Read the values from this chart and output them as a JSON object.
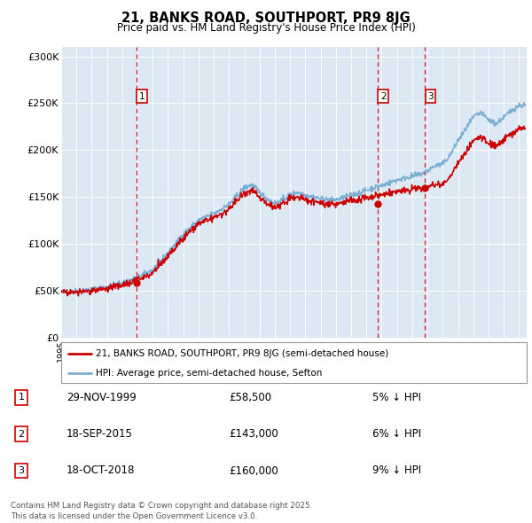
{
  "title": "21, BANKS ROAD, SOUTHPORT, PR9 8JG",
  "subtitle": "Price paid vs. HM Land Registry's House Price Index (HPI)",
  "background_color": "#dce9f5",
  "plot_bg_color": "#dce9f5",
  "ylim": [
    0,
    310000
  ],
  "yticks": [
    0,
    50000,
    100000,
    150000,
    200000,
    250000,
    300000
  ],
  "ytick_labels": [
    "£0",
    "£50K",
    "£100K",
    "£150K",
    "£200K",
    "£250K",
    "£300K"
  ],
  "sale_dates": [
    1999.91,
    2015.72,
    2018.8
  ],
  "sale_prices": [
    58500,
    143000,
    160000
  ],
  "sale_labels": [
    "1",
    "2",
    "3"
  ],
  "hpi_color": "#7bafd4",
  "price_color": "#cc0000",
  "sale_marker_color": "#cc0000",
  "dashed_line_color": "#cc0000",
  "legend_house_label": "21, BANKS ROAD, SOUTHPORT, PR9 8JG (semi-detached house)",
  "legend_hpi_label": "HPI: Average price, semi-detached house, Sefton",
  "table_rows": [
    [
      "1",
      "29-NOV-1999",
      "£58,500",
      "5% ↓ HPI"
    ],
    [
      "2",
      "18-SEP-2015",
      "£143,000",
      "6% ↓ HPI"
    ],
    [
      "3",
      "18-OCT-2018",
      "£160,000",
      "9% ↓ HPI"
    ]
  ],
  "footer": "Contains HM Land Registry data © Crown copyright and database right 2025.\nThis data is licensed under the Open Government Licence v3.0.",
  "font_family": "DejaVu Sans",
  "hpi_keypoints": [
    [
      1995.0,
      48000
    ],
    [
      1996.0,
      49500
    ],
    [
      1997.0,
      51000
    ],
    [
      1998.0,
      54000
    ],
    [
      1999.0,
      58000
    ],
    [
      2000.0,
      64000
    ],
    [
      2001.0,
      72000
    ],
    [
      2002.0,
      90000
    ],
    [
      2003.0,
      110000
    ],
    [
      2004.0,
      125000
    ],
    [
      2005.0,
      132000
    ],
    [
      2006.0,
      142000
    ],
    [
      2007.0,
      160000
    ],
    [
      2007.5,
      163000
    ],
    [
      2008.0,
      155000
    ],
    [
      2008.5,
      148000
    ],
    [
      2009.0,
      143000
    ],
    [
      2009.5,
      147000
    ],
    [
      2010.0,
      152000
    ],
    [
      2010.5,
      155000
    ],
    [
      2011.0,
      152000
    ],
    [
      2011.5,
      150000
    ],
    [
      2012.0,
      148000
    ],
    [
      2012.5,
      147000
    ],
    [
      2013.0,
      147000
    ],
    [
      2013.5,
      149000
    ],
    [
      2014.0,
      152000
    ],
    [
      2014.5,
      154000
    ],
    [
      2015.0,
      157000
    ],
    [
      2015.5,
      160000
    ],
    [
      2016.0,
      162000
    ],
    [
      2016.5,
      165000
    ],
    [
      2017.0,
      168000
    ],
    [
      2017.5,
      170000
    ],
    [
      2018.0,
      172000
    ],
    [
      2018.5,
      174000
    ],
    [
      2019.0,
      178000
    ],
    [
      2019.5,
      183000
    ],
    [
      2020.0,
      185000
    ],
    [
      2020.5,
      195000
    ],
    [
      2021.0,
      210000
    ],
    [
      2021.5,
      222000
    ],
    [
      2022.0,
      235000
    ],
    [
      2022.5,
      240000
    ],
    [
      2023.0,
      232000
    ],
    [
      2023.5,
      228000
    ],
    [
      2024.0,
      235000
    ],
    [
      2024.5,
      242000
    ],
    [
      2025.0,
      248000
    ],
    [
      2025.3,
      248000
    ]
  ],
  "price_scale_points": [
    [
      1995.0,
      0.99
    ],
    [
      1999.91,
      0.95
    ],
    [
      2004.0,
      0.97
    ],
    [
      2007.5,
      0.96
    ],
    [
      2009.5,
      0.97
    ],
    [
      2013.0,
      0.97
    ],
    [
      2015.72,
      0.94
    ],
    [
      2018.8,
      0.91
    ],
    [
      2020.0,
      0.88
    ],
    [
      2022.0,
      0.89
    ],
    [
      2025.3,
      0.9
    ]
  ]
}
